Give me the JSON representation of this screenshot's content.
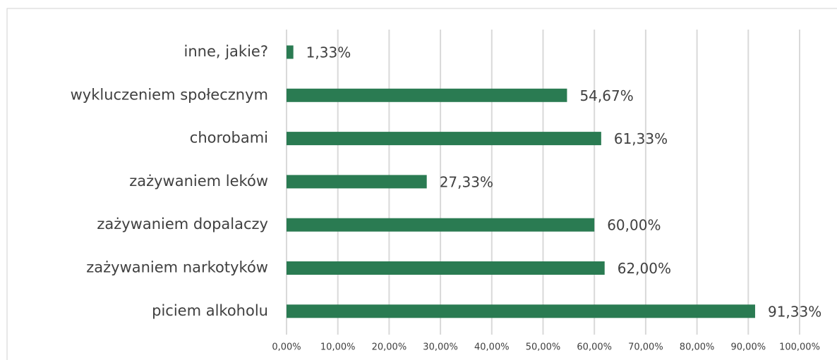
{
  "chart_data": {
    "type": "barh",
    "categories": [
      "inne, jakie?",
      "wykluczeniem społecznym",
      "chorobami",
      "zażywaniem leków",
      "zażywaniem dopalaczy",
      "zażywaniem narkotyków",
      "piciem alkoholu"
    ],
    "values": [
      1.33,
      54.67,
      61.33,
      27.33,
      60.0,
      62.0,
      91.33
    ],
    "value_labels": [
      "1,33%",
      "54,67%",
      "61,33%",
      "27,33%",
      "60,00%",
      "62,00%",
      "91,33%"
    ],
    "color": "#2a7b52",
    "xlim": [
      0,
      100
    ],
    "xticks": [
      {
        "value": 0,
        "label": "0,00%"
      },
      {
        "value": 10,
        "label": "10,00%"
      },
      {
        "value": 20,
        "label": "20,00%"
      },
      {
        "value": 30,
        "label": "30,00%"
      },
      {
        "value": 40,
        "label": "40,00%"
      },
      {
        "value": 50,
        "label": "50,00%"
      },
      {
        "value": 60,
        "label": "60,00%"
      },
      {
        "value": 70,
        "label": "70,00%"
      },
      {
        "value": 80,
        "label": "80,00%"
      },
      {
        "value": 90,
        "label": "90,00%"
      },
      {
        "value": 100,
        "label": "100,00%"
      }
    ],
    "grid": true
  }
}
